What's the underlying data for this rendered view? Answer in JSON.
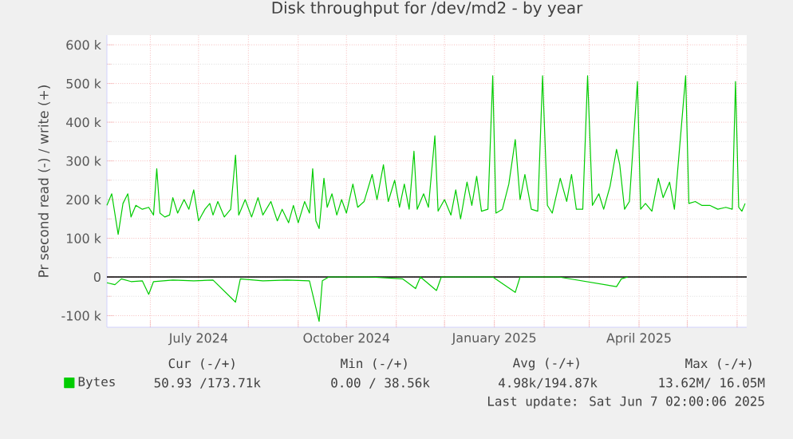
{
  "chart_data": {
    "type": "line",
    "title": "Disk throughput for /dev/md2 - by year",
    "ylabel": "Pr second read (-) / write (+)",
    "xlim": [
      "2024-05-05",
      "2025-06-07"
    ],
    "xticks": [
      {
        "value": "2024-06-01",
        "label": null
      },
      {
        "value": "2024-07-01",
        "label": "July 2024"
      },
      {
        "value": "2024-08-01",
        "label": null
      },
      {
        "value": "2024-09-01",
        "label": null
      },
      {
        "value": "2024-10-01",
        "label": "October 2024"
      },
      {
        "value": "2024-11-01",
        "label": null
      },
      {
        "value": "2024-12-01",
        "label": null
      },
      {
        "value": "2025-01-01",
        "label": "January 2025"
      },
      {
        "value": "2025-02-01",
        "label": null
      },
      {
        "value": "2025-03-01",
        "label": null
      },
      {
        "value": "2025-04-01",
        "label": "April 2025"
      },
      {
        "value": "2025-05-01",
        "label": null
      },
      {
        "value": "2025-06-01",
        "label": null
      }
    ],
    "ylim": [
      -130000,
      625000
    ],
    "yticks": [
      {
        "value": -100000,
        "label": "-100 k"
      },
      0,
      {
        "value": 100000,
        "label": "100 k"
      },
      {
        "value": 200000,
        "label": "200 k"
      },
      {
        "value": 300000,
        "label": "300 k"
      },
      {
        "value": 400000,
        "label": "400 k"
      },
      {
        "value": 500000,
        "label": "500 k"
      },
      {
        "value": 600000,
        "label": "600 k"
      }
    ],
    "grid": true,
    "legend": "bottom",
    "marker": "none",
    "line_style": "solid",
    "ref_lines": [
      {
        "axis": "y",
        "value": 0,
        "color": "#000000"
      }
    ],
    "series": [
      {
        "name": "Bytes",
        "color": "#00cc00",
        "x": [
          "2024-05-05",
          "2024-05-08",
          "2024-05-12",
          "2024-05-15",
          "2024-05-18",
          "2024-05-20",
          "2024-05-23",
          "2024-05-27",
          "2024-05-31",
          "2024-06-03",
          "2024-06-05",
          "2024-06-07",
          "2024-06-10",
          "2024-06-13",
          "2024-06-15",
          "2024-06-18",
          "2024-06-22",
          "2024-06-25",
          "2024-06-28",
          "2024-07-01",
          "2024-07-05",
          "2024-07-08",
          "2024-07-10",
          "2024-07-13",
          "2024-07-17",
          "2024-07-21",
          "2024-07-24",
          "2024-07-26",
          "2024-07-30",
          "2024-08-03",
          "2024-08-07",
          "2024-08-10",
          "2024-08-15",
          "2024-08-19",
          "2024-08-22",
          "2024-08-26",
          "2024-08-29",
          "2024-09-01",
          "2024-09-05",
          "2024-09-08",
          "2024-09-10",
          "2024-09-12",
          "2024-09-14",
          "2024-09-17",
          "2024-09-19",
          "2024-09-22",
          "2024-09-25",
          "2024-09-28",
          "2024-10-01",
          "2024-10-05",
          "2024-10-08",
          "2024-10-12",
          "2024-10-17",
          "2024-10-20",
          "2024-10-24",
          "2024-10-27",
          "2024-10-31",
          "2024-11-03",
          "2024-11-06",
          "2024-11-09",
          "2024-11-12",
          "2024-11-14",
          "2024-11-18",
          "2024-11-21",
          "2024-11-25",
          "2024-11-27",
          "2024-12-01",
          "2024-12-05",
          "2024-12-08",
          "2024-12-11",
          "2024-12-15",
          "2024-12-18",
          "2024-12-21",
          "2024-12-24",
          "2024-12-28",
          "2024-12-31",
          "2025-01-02",
          "2025-01-06",
          "2025-01-10",
          "2025-01-14",
          "2025-01-17",
          "2025-01-20",
          "2025-01-24",
          "2025-01-28",
          "2025-01-31",
          "2025-02-03",
          "2025-02-06",
          "2025-02-11",
          "2025-02-15",
          "2025-02-18",
          "2025-02-21",
          "2025-02-25",
          "2025-02-28",
          "2025-03-03",
          "2025-03-07",
          "2025-03-10",
          "2025-03-14",
          "2025-03-18",
          "2025-03-20",
          "2025-03-23",
          "2025-03-26",
          "2025-03-31",
          "2025-04-02",
          "2025-04-05",
          "2025-04-09",
          "2025-04-13",
          "2025-04-16",
          "2025-04-20",
          "2025-04-23",
          "2025-04-30",
          "2025-05-02",
          "2025-05-06",
          "2025-05-10",
          "2025-05-15",
          "2025-05-20",
          "2025-05-25",
          "2025-05-29",
          "2025-05-31",
          "2025-06-02",
          "2025-06-04",
          "2025-06-06"
        ],
        "values": [
          185000,
          215000,
          110000,
          190000,
          215000,
          155000,
          185000,
          175000,
          180000,
          160000,
          280000,
          165000,
          155000,
          160000,
          205000,
          165000,
          200000,
          175000,
          225000,
          145000,
          175000,
          190000,
          160000,
          195000,
          155000,
          175000,
          315000,
          160000,
          200000,
          155000,
          205000,
          160000,
          195000,
          145000,
          175000,
          140000,
          185000,
          140000,
          195000,
          165000,
          280000,
          145000,
          125000,
          255000,
          180000,
          215000,
          160000,
          200000,
          165000,
          240000,
          180000,
          195000,
          265000,
          200000,
          290000,
          195000,
          250000,
          180000,
          240000,
          175000,
          325000,
          175000,
          215000,
          180000,
          365000,
          170000,
          200000,
          160000,
          225000,
          150000,
          245000,
          185000,
          260000,
          170000,
          175000,
          520000,
          165000,
          175000,
          240000,
          355000,
          200000,
          265000,
          175000,
          170000,
          520000,
          185000,
          165000,
          255000,
          195000,
          265000,
          175000,
          175000,
          520000,
          185000,
          215000,
          175000,
          235000,
          330000,
          290000,
          175000,
          195000,
          505000,
          175000,
          190000,
          170000,
          255000,
          205000,
          245000,
          175000,
          520000,
          190000,
          195000,
          185000,
          185000,
          175000,
          180000,
          175000,
          505000,
          180000,
          170000,
          190000
        ]
      },
      {
        "color": "#00cc00",
        "x": [
          "2024-05-05",
          "2024-05-10",
          "2024-05-14",
          "2024-05-20",
          "2024-05-27",
          "2024-05-31",
          "2024-06-03",
          "2024-06-15",
          "2024-06-28",
          "2024-07-10",
          "2024-07-24",
          "2024-07-27",
          "2024-08-10",
          "2024-08-25",
          "2024-09-08",
          "2024-09-14",
          "2024-09-16",
          "2024-09-20",
          "2024-10-15",
          "2024-11-05",
          "2024-11-13",
          "2024-11-16",
          "2024-11-26",
          "2024-11-29",
          "2024-12-31",
          "2025-01-14",
          "2025-01-17",
          "2025-02-10",
          "2025-03-18",
          "2025-03-21",
          "2025-03-25"
        ],
        "values": [
          -15000,
          -20000,
          -5000,
          -12000,
          -10000,
          -45000,
          -12000,
          -8000,
          -10000,
          -8000,
          -65000,
          -5000,
          -10000,
          -8000,
          -10000,
          -115000,
          -10000,
          0,
          0,
          -5000,
          -30000,
          0,
          -35000,
          0,
          0,
          -40000,
          0,
          0,
          -25000,
          -5000,
          0
        ]
      }
    ],
    "annotations": [
      "Cur (-/+)",
      "Min (-/+)",
      "Avg (-/+)",
      "Max (-/+)",
      "50.93 /173.71k",
      "0.00 / 38.56k",
      "4.98k/194.87k",
      "13.62M/ 16.05M",
      "Last update: Sat Jun  7 02:00:06 2025"
    ]
  }
}
